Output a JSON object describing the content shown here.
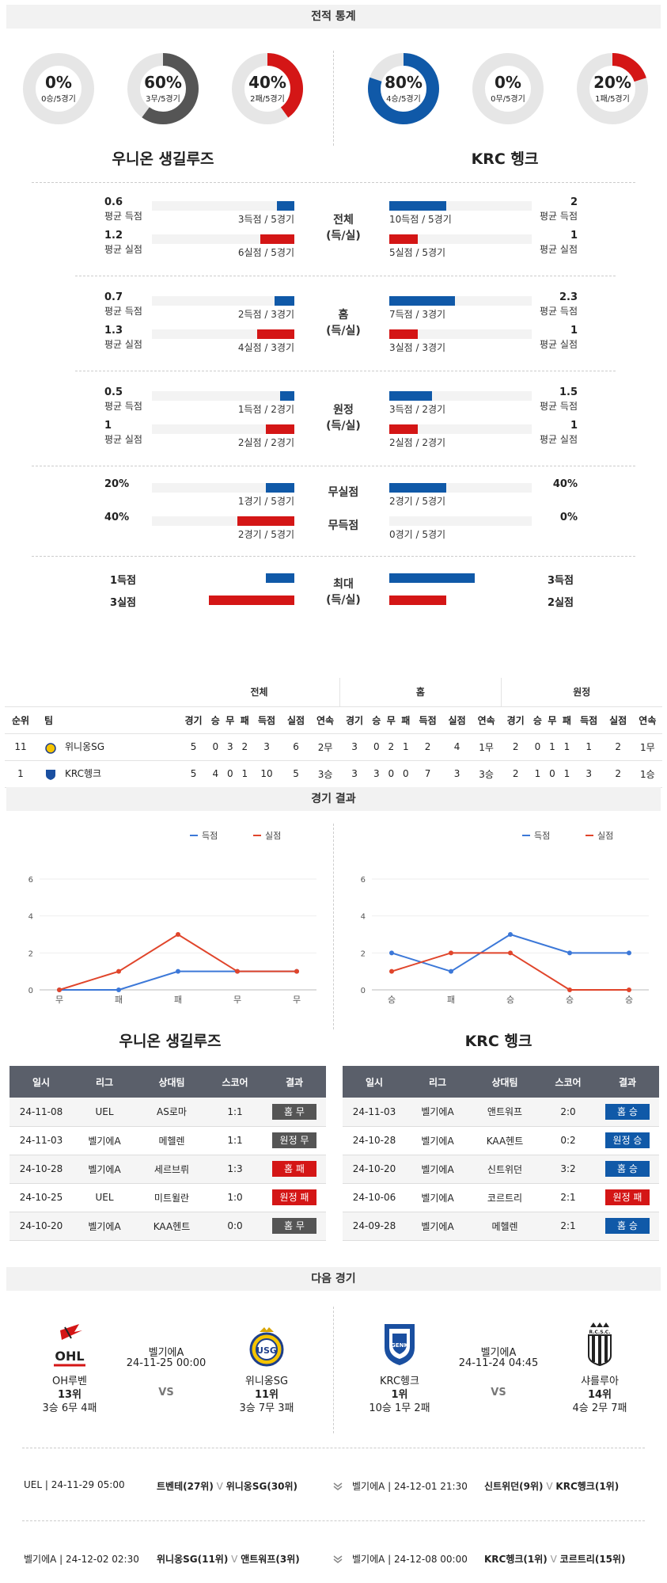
{
  "sections": {
    "stats": "전적 통계",
    "results": "경기 결과",
    "next": "다음 경기"
  },
  "donuts": [
    {
      "pct": "0%",
      "sub": "0승/5경기",
      "value": 0,
      "color": "#555555"
    },
    {
      "pct": "60%",
      "sub": "3무/5경기",
      "value": 60,
      "color": "#555555"
    },
    {
      "pct": "40%",
      "sub": "2패/5경기",
      "value": 40,
      "color": "#d41616"
    },
    {
      "pct": "80%",
      "sub": "4승/5경기",
      "value": 80,
      "color": "#1059a8"
    },
    {
      "pct": "0%",
      "sub": "0무/5경기",
      "value": 0,
      "color": "#555555"
    },
    {
      "pct": "20%",
      "sub": "1패/5경기",
      "value": 20,
      "color": "#d41616"
    }
  ],
  "teams": {
    "home": "우니온 생길루즈",
    "away": "KRC 헹크"
  },
  "stat_groups": [
    {
      "label1": "전체",
      "label2": "(득/실)",
      "rows": [
        {
          "lv": "0.6",
          "llab": "평균 득점",
          "lcnt": "3득점 / 5경기",
          "lfrac": 0.12,
          "rv": "2",
          "rlab": "평균 득점",
          "rcnt": "10득점 / 5경기",
          "rfrac": 0.4
        },
        {
          "lv": "1.2",
          "llab": "평균 실점",
          "lcnt": "6실점 / 5경기",
          "lfrac": 0.24,
          "rv": "1",
          "rlab": "평균 실점",
          "rcnt": "5실점 / 5경기",
          "rfrac": 0.2
        }
      ]
    },
    {
      "label1": "홈",
      "label2": "(득/실)",
      "rows": [
        {
          "lv": "0.7",
          "llab": "평균 득점",
          "lcnt": "2득점 / 3경기",
          "lfrac": 0.14,
          "rv": "2.3",
          "rlab": "평균 득점",
          "rcnt": "7득점 / 3경기",
          "rfrac": 0.46
        },
        {
          "lv": "1.3",
          "llab": "평균 실점",
          "lcnt": "4실점 / 3경기",
          "lfrac": 0.26,
          "rv": "1",
          "rlab": "평균 실점",
          "rcnt": "3실점 / 3경기",
          "rfrac": 0.2
        }
      ]
    },
    {
      "label1": "원정",
      "label2": "(득/실)",
      "rows": [
        {
          "lv": "0.5",
          "llab": "평균 득점",
          "lcnt": "1득점 / 2경기",
          "lfrac": 0.1,
          "rv": "1.5",
          "rlab": "평균 득점",
          "rcnt": "3득점 / 2경기",
          "rfrac": 0.3
        },
        {
          "lv": "1",
          "llab": "평균 실점",
          "lcnt": "2실점 / 2경기",
          "lfrac": 0.2,
          "rv": "1",
          "rlab": "평균 실점",
          "rcnt": "2실점 / 2경기",
          "rfrac": 0.2
        }
      ]
    }
  ],
  "clean": [
    {
      "mid": "무실점",
      "lv": "20%",
      "lcnt": "1경기 / 5경기",
      "lfrac": 0.2,
      "rv": "40%",
      "rcnt": "2경기 / 5경기",
      "rfrac": 0.4
    },
    {
      "mid": "무득점",
      "lv": "40%",
      "lcnt": "2경기 / 5경기",
      "lfrac": 0.4,
      "rv": "0%",
      "rcnt": "0경기 / 5경기",
      "rfrac": 0.0
    }
  ],
  "max": {
    "label1": "최대",
    "label2": "(득/실)",
    "rows": [
      {
        "lv": "1득점",
        "lfrac": 0.2,
        "rv": "3득점",
        "rfrac": 0.6
      },
      {
        "lv": "3실점",
        "lfrac": 0.6,
        "rv": "2실점",
        "rfrac": 0.4
      }
    ]
  },
  "standings": {
    "groups": [
      "전체",
      "홈",
      "원정"
    ],
    "headers": [
      "순위",
      "팀",
      "경기",
      "승",
      "무",
      "패",
      "득점",
      "실점",
      "연속",
      "경기",
      "승",
      "무",
      "패",
      "득점",
      "실점",
      "연속",
      "경기",
      "승",
      "무",
      "패",
      "득점",
      "실점",
      "연속"
    ],
    "rows": [
      [
        "11",
        "위니옹SG",
        "5",
        "0",
        "3",
        "2",
        "3",
        "6",
        "2무",
        "3",
        "0",
        "2",
        "1",
        "2",
        "4",
        "1무",
        "2",
        "0",
        "1",
        "1",
        "1",
        "2",
        "1무"
      ],
      [
        "1",
        "KRC헹크",
        "5",
        "4",
        "0",
        "1",
        "10",
        "5",
        "3승",
        "3",
        "3",
        "0",
        "0",
        "7",
        "3",
        "3승",
        "2",
        "1",
        "0",
        "1",
        "3",
        "2",
        "1승"
      ]
    ]
  },
  "charts": [
    {
      "legend": [
        "득점",
        "실점"
      ],
      "x": [
        "무",
        "패",
        "패",
        "무",
        "무"
      ],
      "scored": [
        0,
        0,
        1,
        1,
        1
      ],
      "conceded": [
        0,
        1,
        3,
        1,
        1
      ],
      "yticks": [
        0,
        2,
        4,
        6
      ],
      "ylim": [
        0,
        6
      ],
      "colors": [
        "#3c78d8",
        "#e0452b"
      ]
    },
    {
      "legend": [
        "득점",
        "실점"
      ],
      "x": [
        "승",
        "패",
        "승",
        "승",
        "승"
      ],
      "scored": [
        2,
        1,
        3,
        2,
        2
      ],
      "conceded": [
        1,
        2,
        2,
        0,
        0
      ],
      "yticks": [
        0,
        2,
        4,
        6
      ],
      "ylim": [
        0,
        6
      ],
      "colors": [
        "#3c78d8",
        "#e0452b"
      ]
    }
  ],
  "result_tables": [
    {
      "team": "우니온 생길루즈",
      "headers": [
        "일시",
        "리그",
        "상대팀",
        "스코어",
        "결과"
      ],
      "rows": [
        [
          "24-11-08",
          "UEL",
          "AS로마",
          "1:1",
          "홈 무",
          "draw"
        ],
        [
          "24-11-03",
          "벨기에A",
          "메헬렌",
          "1:1",
          "원정 무",
          "draw"
        ],
        [
          "24-10-28",
          "벨기에A",
          "세르브뤼",
          "1:3",
          "홈 패",
          "loss"
        ],
        [
          "24-10-25",
          "UEL",
          "미트윌란",
          "1:0",
          "원정 패",
          "loss"
        ],
        [
          "24-10-20",
          "벨기에A",
          "KAA헨트",
          "0:0",
          "홈 무",
          "draw"
        ]
      ]
    },
    {
      "team": "KRC 헹크",
      "headers": [
        "일시",
        "리그",
        "상대팀",
        "스코어",
        "결과"
      ],
      "rows": [
        [
          "24-11-03",
          "벨기에A",
          "앤트워프",
          "2:0",
          "홈 승",
          "win"
        ],
        [
          "24-10-28",
          "벨기에A",
          "KAA헨트",
          "0:2",
          "원정 승",
          "win"
        ],
        [
          "24-10-20",
          "벨기에A",
          "신트위던",
          "3:2",
          "홈 승",
          "win"
        ],
        [
          "24-10-06",
          "벨기에A",
          "코르트리",
          "2:1",
          "원정 패",
          "loss"
        ],
        [
          "24-09-28",
          "벨기에A",
          "메헬렌",
          "2:1",
          "홈 승",
          "win"
        ]
      ]
    }
  ],
  "next_matches": [
    {
      "league": "벨기에A",
      "time": "24-11-25 00:00",
      "vs": "VS",
      "home": {
        "name": "OH루벤",
        "rank": "13위",
        "rec": "3승 6무 4패",
        "logo_text": "OHL"
      },
      "away": {
        "name": "위니옹SG",
        "rank": "11위",
        "rec": "3승 7무 3패",
        "logo_text": "USG"
      }
    },
    {
      "league": "벨기에A",
      "time": "24-11-24 04:45",
      "vs": "VS",
      "home": {
        "name": "KRC헹크",
        "rank": "1위",
        "rec": "10승 1무 2패",
        "logo_text": "GENK"
      },
      "away": {
        "name": "샤를루아",
        "rank": "14위",
        "rec": "4승 2무 7패",
        "logo_text": "R.C.S.C."
      }
    }
  ],
  "upcoming": [
    {
      "left": {
        "info": "UEL | 24-11-29 05:00",
        "t1": "트벤테(27위)",
        "t2": "위니옹SG(30위)"
      },
      "right": {
        "info": "벨기에A | 24-12-01 21:30",
        "t1": "신트위던(9위)",
        "t2": "KRC헹크(1위)"
      }
    },
    {
      "left": {
        "info": "벨기에A | 24-12-02 02:30",
        "t1": "위니옹SG(11위)",
        "t2": "앤트워프(3위)"
      },
      "right": {
        "info": "벨기에A | 24-12-08 00:00",
        "t1": "KRC헹크(1위)",
        "t2": "코르트리(15위)"
      }
    }
  ],
  "vs_mark": "V"
}
